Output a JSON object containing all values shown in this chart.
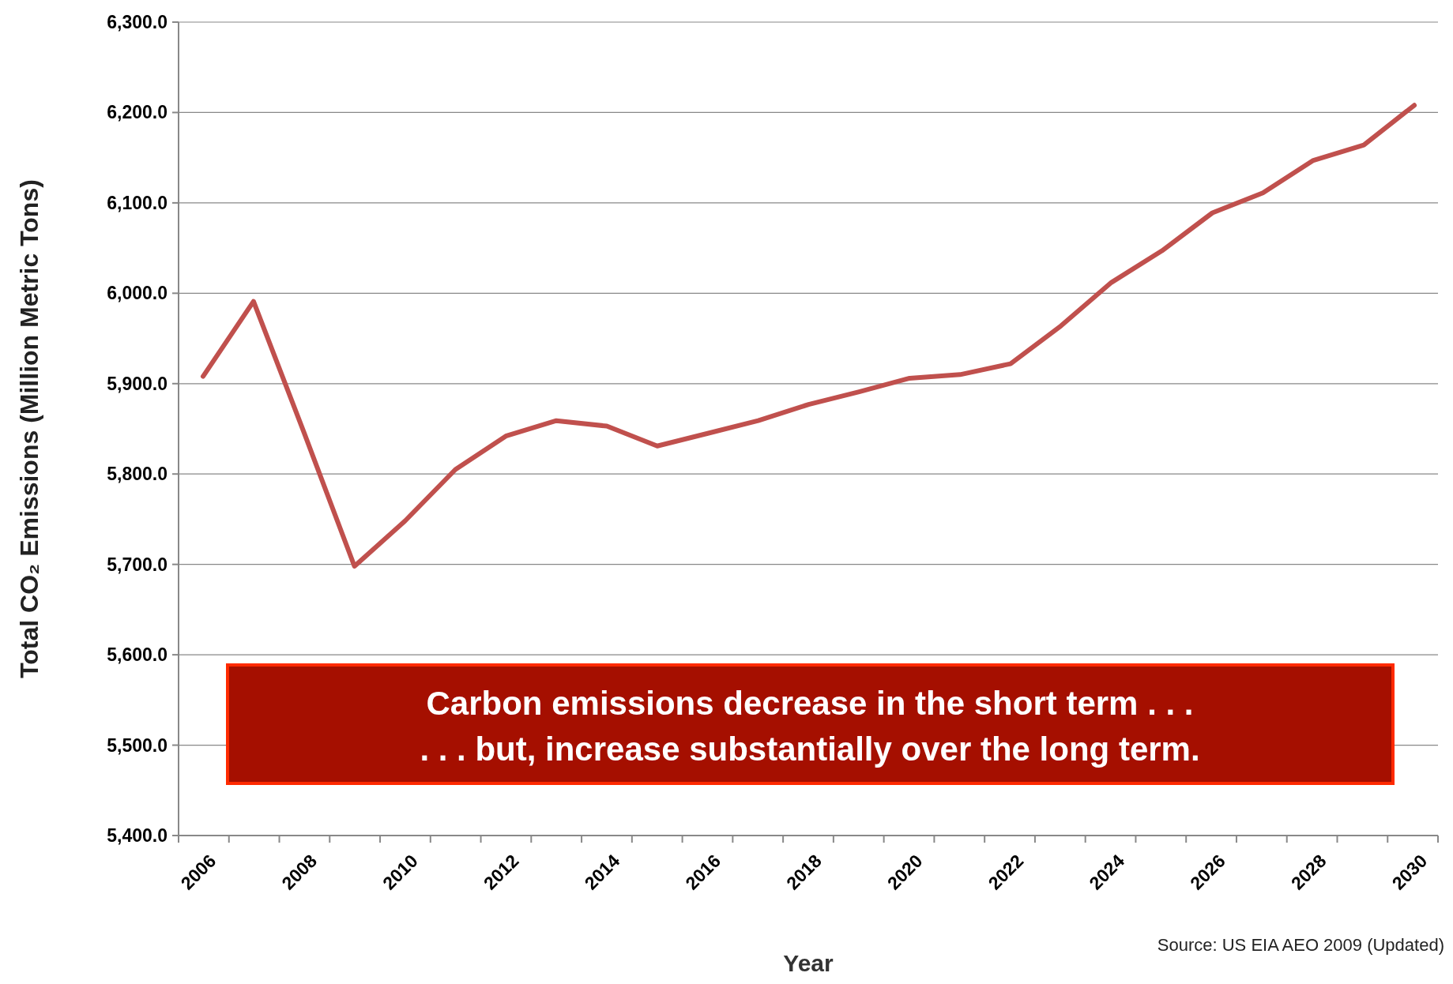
{
  "chart_data": {
    "type": "line",
    "xlabel": "Year",
    "ylabel": "Total CO₂ Emissions (Million Metric Tons)",
    "categories": [
      "2006",
      null,
      "2008",
      null,
      "2010",
      null,
      "2012",
      null,
      "2014",
      null,
      "2016",
      null,
      "2018",
      null,
      "2020",
      null,
      "2022",
      null,
      "2024",
      null,
      "2026",
      null,
      "2028",
      null,
      "2030"
    ],
    "series": [
      {
        "color": "#c0504d",
        "values": [
          5908,
          5991,
          5846,
          5698,
          5748,
          5805,
          5842,
          5859,
          5853,
          5831,
          5845,
          5859,
          5877,
          5891,
          5906,
          5910,
          5922,
          5964,
          6012,
          6047,
          6089,
          6111,
          6147,
          6164,
          6208
        ]
      }
    ],
    "ylim": [
      5400,
      6300
    ],
    "yticks": [
      {
        "value": 5400,
        "label": "5,400.0"
      },
      {
        "value": 5500,
        "label": "5,500.0"
      },
      {
        "value": 5600,
        "label": "5,600.0"
      },
      {
        "value": 5700,
        "label": "5,700.0"
      },
      {
        "value": 5800,
        "label": "5,800.0"
      },
      {
        "value": 5900,
        "label": "5,900.0"
      },
      {
        "value": 6000,
        "label": "6,000.0"
      },
      {
        "value": 6100,
        "label": "6,100.0"
      },
      {
        "value": 6200,
        "label": "6,200.0"
      },
      {
        "value": 6300,
        "label": "6,300.0"
      }
    ],
    "grid": "y",
    "marker": "none",
    "line_style": "solid",
    "annotations": [
      "Carbon emissions decrease in the short term . . .\n. . . but, increase substantially over the long term.",
      "Source: US EIA AEO 2009 (Updated)"
    ]
  }
}
